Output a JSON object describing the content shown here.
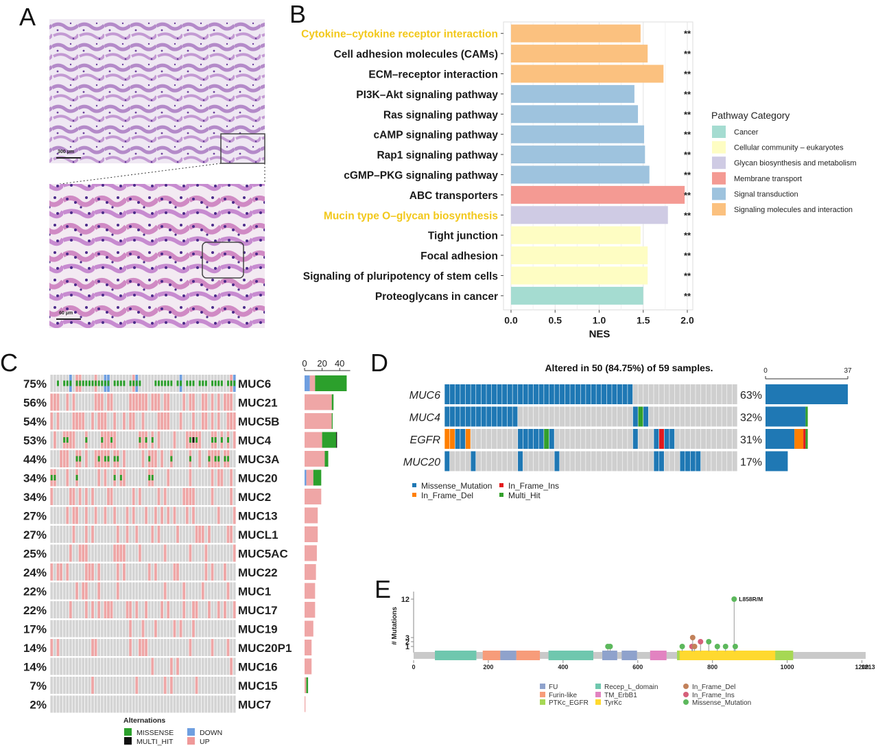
{
  "panels": {
    "a": "A",
    "b": "B",
    "c": "C",
    "d": "D",
    "e": "E"
  },
  "panel_a": {
    "scalebar_top": "300 μm",
    "scalebar_bottom": "60 μm"
  },
  "chart_data": [
    {
      "panel": "B",
      "type": "bar",
      "orientation": "horizontal",
      "xlabel": "NES",
      "xlim": [
        0,
        2.0
      ],
      "xticks": [
        "0.0",
        "0.5",
        "1.0",
        "1.5",
        "2.0"
      ],
      "legend_title": "Pathway Category",
      "legend_placement": "right",
      "categories_legend": [
        {
          "name": "Cancer",
          "color": "#a5dcd1"
        },
        {
          "name": "Cellular community – eukaryotes",
          "color": "#fefdc3"
        },
        {
          "name": "Glycan biosynthesis and metabolism",
          "color": "#cfcbe4"
        },
        {
          "name": "Membrane transport",
          "color": "#f49a93"
        },
        {
          "name": "Signal transduction",
          "color": "#9ec3de"
        },
        {
          "name": "Signaling molecules and interaction",
          "color": "#fbc17f"
        }
      ],
      "bars": [
        {
          "label": "Cytokine–cytokine receptor interaction",
          "value": 1.47,
          "category": 5,
          "sig": "**",
          "highlight": true
        },
        {
          "label": "Cell adhesion molecules (CAMs)",
          "value": 1.55,
          "category": 5,
          "sig": "**",
          "highlight": false
        },
        {
          "label": "ECM–receptor interaction",
          "value": 1.73,
          "category": 5,
          "sig": "**",
          "highlight": false
        },
        {
          "label": "PI3K–Akt signaling pathway",
          "value": 1.4,
          "category": 4,
          "sig": "**",
          "highlight": false
        },
        {
          "label": "Ras signaling pathway",
          "value": 1.44,
          "category": 4,
          "sig": "**",
          "highlight": false
        },
        {
          "label": "cAMP signaling pathway",
          "value": 1.51,
          "category": 4,
          "sig": "**",
          "highlight": false
        },
        {
          "label": "Rap1 signaling pathway",
          "value": 1.52,
          "category": 4,
          "sig": "**",
          "highlight": false
        },
        {
          "label": "cGMP–PKG signaling pathway",
          "value": 1.57,
          "category": 4,
          "sig": "**",
          "highlight": false
        },
        {
          "label": "ABC transporters",
          "value": 1.97,
          "category": 3,
          "sig": "**",
          "highlight": false
        },
        {
          "label": "Mucin type O–glycan biosynthesis",
          "value": 1.78,
          "category": 2,
          "sig": "**",
          "highlight": true
        },
        {
          "label": "Tight junction",
          "value": 1.47,
          "category": 1,
          "sig": "**",
          "highlight": false
        },
        {
          "label": "Focal adhesion",
          "value": 1.55,
          "category": 1,
          "sig": "**",
          "highlight": false
        },
        {
          "label": "Signaling of pluripotency of stem cells",
          "value": 1.55,
          "category": 1,
          "sig": "**",
          "highlight": false
        },
        {
          "label": "Proteoglycans in cancer",
          "value": 1.5,
          "category": 0,
          "sig": "**",
          "highlight": false
        }
      ]
    },
    {
      "panel": "C",
      "type": "heatmap",
      "xticks": [
        "0",
        "20",
        "40"
      ],
      "genes": [
        {
          "gene": "MUC6",
          "pct": "75%",
          "up": 0,
          "missense": 37,
          "down": 8,
          "multi": 0,
          "bar_up": 6,
          "bar_down": 6,
          "bar_missense": 36,
          "bar_multi": 0
        },
        {
          "gene": "MUC21",
          "pct": "56%",
          "bar_up": 31,
          "bar_down": 0,
          "bar_missense": 2,
          "bar_multi": 0
        },
        {
          "gene": "MUC5B",
          "pct": "54%",
          "bar_up": 31,
          "bar_down": 0,
          "bar_missense": 1,
          "bar_multi": 0
        },
        {
          "gene": "MUC4",
          "pct": "53%",
          "bar_up": 20,
          "bar_down": 0,
          "bar_missense": 16,
          "bar_multi": 1
        },
        {
          "gene": "MUC3A",
          "pct": "44%",
          "bar_up": 23,
          "bar_down": 0,
          "bar_missense": 4,
          "bar_multi": 0
        },
        {
          "gene": "MUC20",
          "pct": "34%",
          "bar_up": 8,
          "bar_down": 2,
          "bar_missense": 9,
          "bar_multi": 0
        },
        {
          "gene": "MUC2",
          "pct": "34%",
          "bar_up": 19,
          "bar_down": 0,
          "bar_missense": 0,
          "bar_multi": 0
        },
        {
          "gene": "MUC13",
          "pct": "27%",
          "bar_up": 15,
          "bar_down": 0,
          "bar_missense": 0,
          "bar_multi": 0
        },
        {
          "gene": "MUCL1",
          "pct": "27%",
          "bar_up": 15,
          "bar_down": 0,
          "bar_missense": 0,
          "bar_multi": 0
        },
        {
          "gene": "MUC5AC",
          "pct": "25%",
          "bar_up": 14,
          "bar_down": 0,
          "bar_missense": 0,
          "bar_multi": 0
        },
        {
          "gene": "MUC22",
          "pct": "24%",
          "bar_up": 13,
          "bar_down": 0,
          "bar_missense": 0,
          "bar_multi": 0
        },
        {
          "gene": "MUC1",
          "pct": "22%",
          "bar_up": 12,
          "bar_down": 0,
          "bar_missense": 0,
          "bar_multi": 0
        },
        {
          "gene": "MUC17",
          "pct": "22%",
          "bar_up": 12,
          "bar_down": 0,
          "bar_missense": 0,
          "bar_multi": 0
        },
        {
          "gene": "MUC19",
          "pct": "17%",
          "bar_up": 10,
          "bar_down": 0,
          "bar_missense": 0,
          "bar_multi": 0
        },
        {
          "gene": "MUC20P1",
          "pct": "14%",
          "bar_up": 8,
          "bar_down": 0,
          "bar_missense": 0,
          "bar_multi": 0
        },
        {
          "gene": "MUC16",
          "pct": "14%",
          "bar_up": 8,
          "bar_down": 0,
          "bar_missense": 0,
          "bar_multi": 0
        },
        {
          "gene": "MUC15",
          "pct": "7%",
          "bar_up": 2,
          "bar_down": 0,
          "bar_missense": 2,
          "bar_multi": 0
        },
        {
          "gene": "MUC7",
          "pct": "2%",
          "bar_up": 1,
          "bar_down": 0,
          "bar_missense": 0,
          "bar_multi": 0
        }
      ],
      "legend_title": "Alternations",
      "legend": [
        {
          "name": "MISSENSE",
          "color": "#2ca02c"
        },
        {
          "name": "DOWN",
          "color": "#6f9fe0"
        },
        {
          "name": "MULTI_HIT",
          "color": "#111111"
        },
        {
          "name": "UP",
          "color": "#ef9999"
        }
      ]
    },
    {
      "panel": "D",
      "type": "heatmap",
      "title": "Altered in 50 (84.75%) of 59 samples.",
      "xticks": [
        "0",
        "37"
      ],
      "genes": [
        {
          "gene": "MUC6",
          "pct": "63%",
          "missense": 37,
          "frame_del": 0,
          "frame_ins": 0,
          "multi": 0
        },
        {
          "gene": "MUC4",
          "pct": "32%",
          "missense": 18,
          "frame_del": 0,
          "frame_ins": 0,
          "multi": 1
        },
        {
          "gene": "EGFR",
          "pct": "31%",
          "missense": 13,
          "frame_del": 4,
          "frame_ins": 1,
          "multi": 1
        },
        {
          "gene": "MUC20",
          "pct": "17%",
          "missense": 10,
          "frame_del": 0,
          "frame_ins": 0,
          "multi": 0
        }
      ],
      "legend": [
        {
          "name": "Missense_Mutation",
          "color": "#1f78b4"
        },
        {
          "name": "In_Frame_Ins",
          "color": "#e31a1c"
        },
        {
          "name": "In_Frame_Del",
          "color": "#ff7f00"
        },
        {
          "name": "Multi_Hit",
          "color": "#33a02c"
        }
      ]
    },
    {
      "panel": "E",
      "type": "scatter",
      "ylabel": "# Mutations",
      "yticks": [
        "12",
        "3",
        "2",
        "1"
      ],
      "xlim": [
        0,
        1210
      ],
      "xticks": [
        "0",
        "200",
        "400",
        "600",
        "800",
        "1000",
        "1200"
      ],
      "xtick_overlap": "1213",
      "annotation": "L858R/M",
      "domains": [
        {
          "name": "Recep_L_domain",
          "start": 57,
          "end": 168,
          "color": "#6fc7ae"
        },
        {
          "name": "Furin-like",
          "start": 185,
          "end": 232,
          "color": "#f79c7a"
        },
        {
          "name": "FU",
          "start": 232,
          "end": 275,
          "color": "#8fa2cc"
        },
        {
          "name": "Furin-like",
          "start": 275,
          "end": 338,
          "color": "#f79c7a"
        },
        {
          "name": "Recep_L_domain",
          "start": 361,
          "end": 481,
          "color": "#6fc7ae"
        },
        {
          "name": "FU",
          "start": 505,
          "end": 545,
          "color": "#8fa2cc"
        },
        {
          "name": "FU",
          "start": 557,
          "end": 598,
          "color": "#8fa2cc"
        },
        {
          "name": "TM_ErbB1",
          "start": 633,
          "end": 677,
          "color": "#e283c1"
        },
        {
          "name": "PTKc_EGFR",
          "start": 705,
          "end": 1016,
          "color": "#a6d854"
        },
        {
          "name": "TyrKc",
          "start": 712,
          "end": 968,
          "color": "#ffd92f"
        }
      ],
      "lollipops": [
        {
          "pos": 520,
          "count": 1,
          "type": "Missense_Mutation"
        },
        {
          "pos": 526,
          "count": 1,
          "type": "Missense_Mutation"
        },
        {
          "pos": 719,
          "count": 1,
          "type": "Missense_Mutation"
        },
        {
          "pos": 745,
          "count": 1,
          "type": "In_Frame_Ins"
        },
        {
          "pos": 747,
          "count": 3,
          "type": "In_Frame_Del"
        },
        {
          "pos": 752,
          "count": 1,
          "type": "In_Frame_Del"
        },
        {
          "pos": 768,
          "count": 2,
          "type": "In_Frame_Ins"
        },
        {
          "pos": 790,
          "count": 2,
          "type": "Missense_Mutation"
        },
        {
          "pos": 813,
          "count": 1,
          "type": "Missense_Mutation"
        },
        {
          "pos": 835,
          "count": 1,
          "type": "Missense_Mutation"
        },
        {
          "pos": 858,
          "count": 12,
          "type": "Missense_Mutation"
        },
        {
          "pos": 861,
          "count": 1,
          "type": "Missense_Mutation"
        }
      ],
      "legend": [
        {
          "name": "FU",
          "color": "#8fa2cc"
        },
        {
          "name": "Recep_L_domain",
          "color": "#6fc7ae"
        },
        {
          "name": "In_Frame_Del",
          "color": "#c2815a"
        },
        {
          "name": "Furin-like",
          "color": "#f79c7a"
        },
        {
          "name": "TM_ErbB1",
          "color": "#e283c1"
        },
        {
          "name": "In_Frame_Ins",
          "color": "#d6607a"
        },
        {
          "name": "PTKc_EGFR",
          "color": "#a6d854"
        },
        {
          "name": "TyrKc",
          "color": "#ffd92f"
        },
        {
          "name": "Missense_Mutation",
          "color": "#5cb85c"
        }
      ]
    }
  ]
}
